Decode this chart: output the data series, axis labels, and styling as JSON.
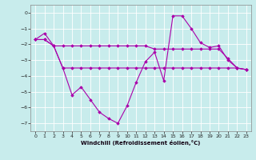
{
  "xlabel": "Windchill (Refroidissement éolien,°C)",
  "bg_color": "#c8ecec",
  "line_color": "#aa00aa",
  "grid_color": "#ffffff",
  "xlim": [
    -0.5,
    23.5
  ],
  "ylim": [
    -7.5,
    0.5
  ],
  "yticks": [
    0,
    -1,
    -2,
    -3,
    -4,
    -5,
    -6,
    -7
  ],
  "xticks": [
    0,
    1,
    2,
    3,
    4,
    5,
    6,
    7,
    8,
    9,
    10,
    11,
    12,
    13,
    14,
    15,
    16,
    17,
    18,
    19,
    20,
    21,
    22,
    23
  ],
  "line1_x": [
    0,
    1,
    2,
    3,
    4,
    5,
    6,
    7,
    8,
    9,
    10,
    11,
    12,
    13,
    14,
    15,
    16,
    17,
    18,
    19,
    20,
    21,
    22,
    23
  ],
  "line1_y": [
    -1.7,
    -1.3,
    -2.1,
    -3.5,
    -5.2,
    -4.7,
    -5.5,
    -6.3,
    -6.7,
    -7.0,
    -5.9,
    -4.4,
    -3.1,
    -2.5,
    -4.3,
    -0.2,
    -0.2,
    -1.0,
    -1.9,
    -2.2,
    -2.1,
    -3.0,
    -3.5,
    -3.6
  ],
  "line2_x": [
    0,
    1,
    2,
    3,
    4,
    5,
    6,
    7,
    8,
    9,
    10,
    11,
    12,
    13,
    14,
    15,
    16,
    17,
    18,
    19,
    20,
    21,
    22,
    23
  ],
  "line2_y": [
    -1.7,
    -1.7,
    -2.1,
    -2.1,
    -2.1,
    -2.1,
    -2.1,
    -2.1,
    -2.1,
    -2.1,
    -2.1,
    -2.1,
    -2.1,
    -2.3,
    -2.3,
    -2.3,
    -2.3,
    -2.3,
    -2.3,
    -2.3,
    -2.3,
    -2.9,
    -3.5,
    -3.6
  ],
  "line3_x": [
    0,
    1,
    2,
    3,
    4,
    5,
    6,
    7,
    8,
    9,
    10,
    11,
    12,
    13,
    14,
    15,
    16,
    17,
    18,
    19,
    20,
    21,
    22,
    23
  ],
  "line3_y": [
    -1.7,
    -1.7,
    -2.1,
    -3.5,
    -3.5,
    -3.5,
    -3.5,
    -3.5,
    -3.5,
    -3.5,
    -3.5,
    -3.5,
    -3.5,
    -3.5,
    -3.5,
    -3.5,
    -3.5,
    -3.5,
    -3.5,
    -3.5,
    -3.5,
    -3.5,
    -3.5,
    -3.6
  ]
}
